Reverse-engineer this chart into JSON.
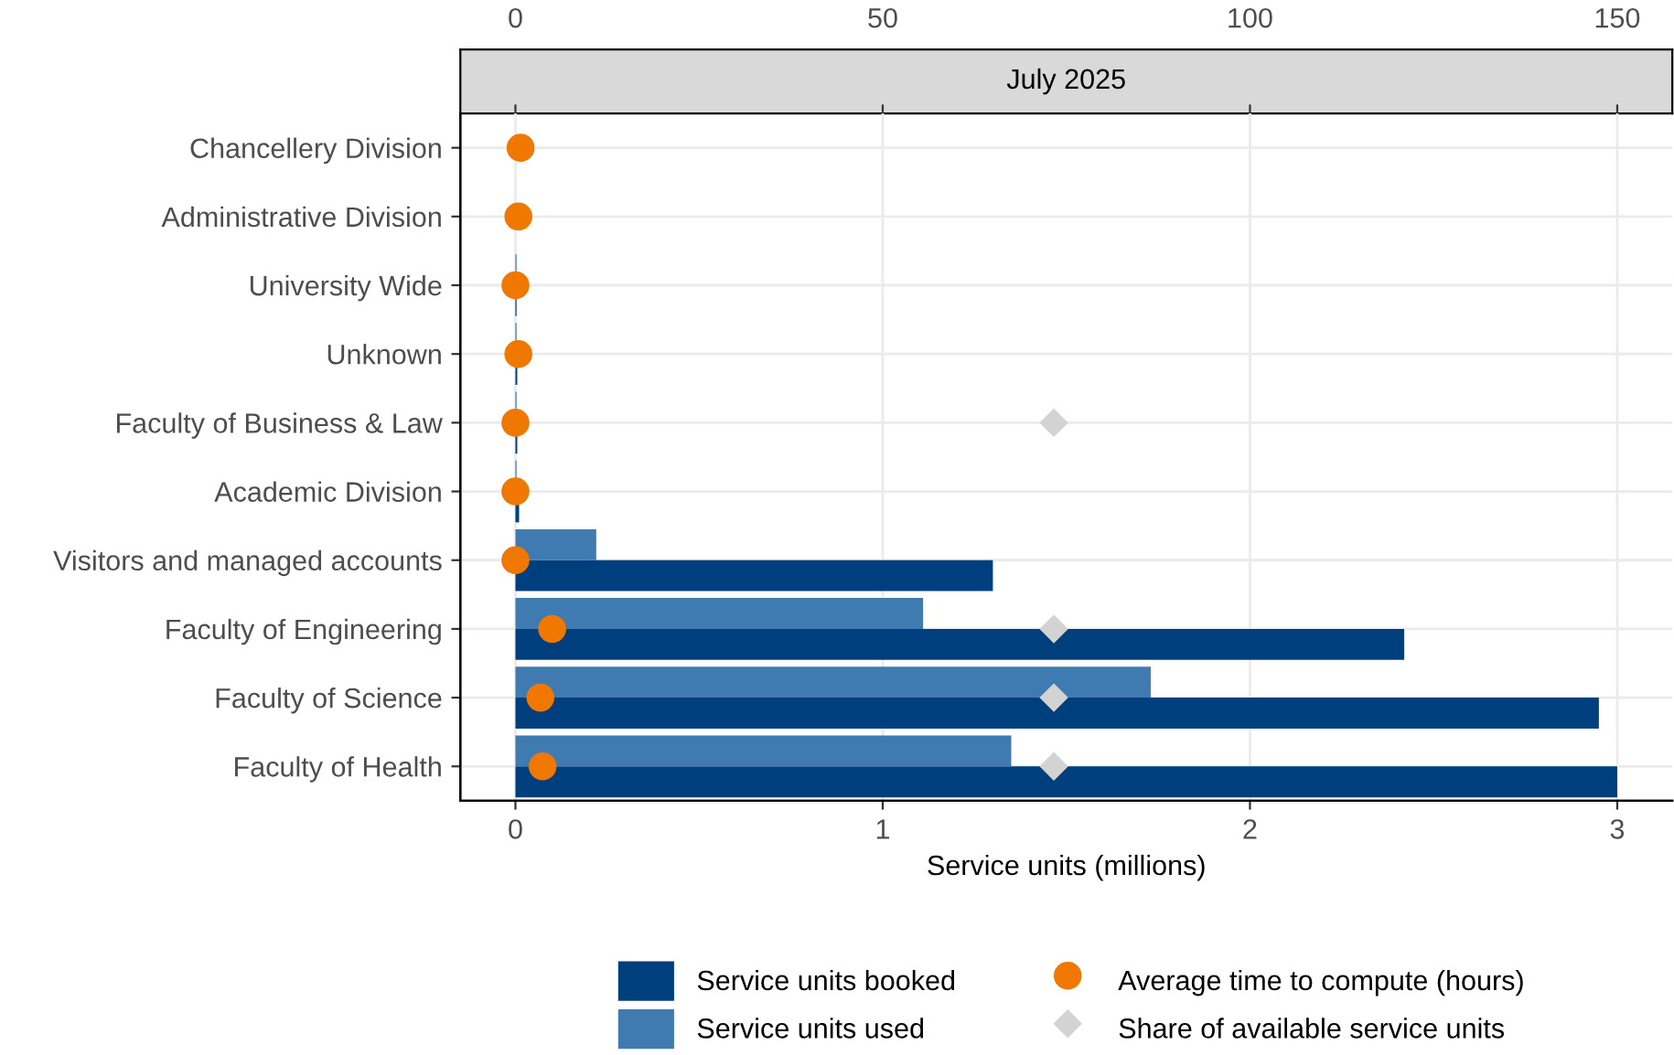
{
  "chart_data": {
    "type": "bar",
    "orientation": "horizontal",
    "title": "July 2025",
    "xlabel": "Service units (millions)",
    "categories": [
      "Chancellery Division",
      "Administrative Division",
      "University Wide",
      "Unknown",
      "Faculty of Business & Law",
      "Academic Division",
      "Visitors and managed accounts",
      "Faculty of Engineering",
      "Faculty of Science",
      "Faculty of Health"
    ],
    "series": [
      {
        "name": "Service units booked",
        "color": "#003f7d",
        "values": [
          0,
          0,
          0.003,
          0.005,
          0.005,
          0.01,
          1.3,
          2.42,
          2.95,
          3.0
        ]
      },
      {
        "name": "Service units used",
        "color": "#3f7ab0",
        "values": [
          0,
          0,
          0.003,
          0.003,
          0.003,
          0.003,
          0.22,
          1.11,
          1.73,
          1.35
        ]
      },
      {
        "name": "Average time to compute (hours)",
        "type": "scatter",
        "axis": "x2",
        "marker": "circle",
        "color": "#f07800",
        "values": [
          0.7,
          0.4,
          0,
          0.4,
          0,
          0,
          0,
          5.0,
          3.4,
          3.7
        ]
      },
      {
        "name": "Share of available service units",
        "type": "scatter",
        "axis": "x2",
        "marker": "diamond",
        "color": "#d3d3d3",
        "values": [
          null,
          null,
          null,
          null,
          73.3,
          null,
          null,
          73.3,
          73.3,
          73.3
        ]
      }
    ],
    "xlim": [
      -0.15,
      3.15
    ],
    "xticks": [
      0,
      1,
      2,
      3
    ],
    "x2lim": [
      -7.5,
      157.5
    ],
    "x2ticks": [
      0,
      50,
      100,
      150
    ],
    "grid": true,
    "legend": "bottom"
  }
}
